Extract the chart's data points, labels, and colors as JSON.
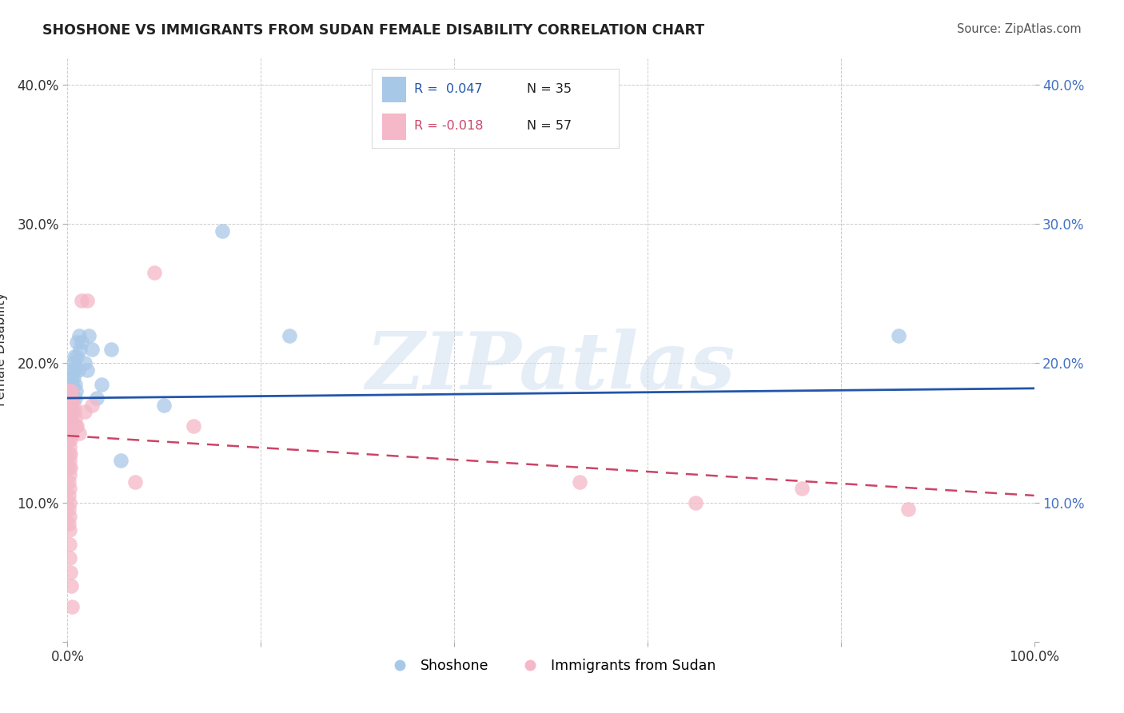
{
  "title": "SHOSHONE VS IMMIGRANTS FROM SUDAN FEMALE DISABILITY CORRELATION CHART",
  "source": "Source: ZipAtlas.com",
  "ylabel": "Female Disability",
  "watermark": "ZIPatlas",
  "xlim": [
    0,
    1.0
  ],
  "ylim": [
    0,
    0.42
  ],
  "ytick_color": "#4472c4",
  "blue_color": "#a8c8e8",
  "pink_color": "#f4b8c8",
  "blue_line_color": "#2255aa",
  "pink_line_color": "#cc4466",
  "grid_color": "#cccccc",
  "background_color": "#ffffff",
  "shoshone_x": [
    0.003,
    0.003,
    0.003,
    0.004,
    0.004,
    0.004,
    0.004,
    0.005,
    0.005,
    0.005,
    0.006,
    0.006,
    0.007,
    0.007,
    0.008,
    0.008,
    0.009,
    0.01,
    0.01,
    0.011,
    0.012,
    0.013,
    0.015,
    0.018,
    0.02,
    0.022,
    0.025,
    0.03,
    0.035,
    0.045,
    0.055,
    0.1,
    0.16,
    0.23,
    0.86
  ],
  "shoshone_y": [
    0.185,
    0.175,
    0.165,
    0.19,
    0.18,
    0.17,
    0.16,
    0.195,
    0.185,
    0.175,
    0.2,
    0.19,
    0.205,
    0.195,
    0.185,
    0.175,
    0.18,
    0.215,
    0.205,
    0.195,
    0.22,
    0.21,
    0.215,
    0.2,
    0.195,
    0.22,
    0.21,
    0.175,
    0.185,
    0.21,
    0.13,
    0.17,
    0.295,
    0.22,
    0.22
  ],
  "sudan_x": [
    0.001,
    0.001,
    0.001,
    0.001,
    0.001,
    0.001,
    0.001,
    0.001,
    0.001,
    0.001,
    0.002,
    0.002,
    0.002,
    0.002,
    0.002,
    0.002,
    0.002,
    0.002,
    0.002,
    0.002,
    0.002,
    0.002,
    0.002,
    0.003,
    0.003,
    0.003,
    0.003,
    0.003,
    0.003,
    0.003,
    0.004,
    0.004,
    0.004,
    0.004,
    0.004,
    0.005,
    0.005,
    0.005,
    0.005,
    0.006,
    0.006,
    0.007,
    0.008,
    0.009,
    0.01,
    0.012,
    0.015,
    0.018,
    0.02,
    0.025,
    0.07,
    0.09,
    0.13,
    0.53,
    0.65,
    0.76,
    0.87
  ],
  "sudan_y": [
    0.175,
    0.165,
    0.155,
    0.145,
    0.135,
    0.125,
    0.115,
    0.105,
    0.095,
    0.085,
    0.18,
    0.17,
    0.16,
    0.15,
    0.14,
    0.13,
    0.12,
    0.11,
    0.1,
    0.09,
    0.08,
    0.07,
    0.06,
    0.175,
    0.165,
    0.155,
    0.145,
    0.135,
    0.125,
    0.05,
    0.18,
    0.17,
    0.16,
    0.15,
    0.04,
    0.175,
    0.165,
    0.155,
    0.025,
    0.17,
    0.155,
    0.165,
    0.16,
    0.155,
    0.155,
    0.15,
    0.245,
    0.165,
    0.245,
    0.17,
    0.115,
    0.265,
    0.155,
    0.115,
    0.1,
    0.11,
    0.095
  ],
  "blue_line_y0": 0.175,
  "blue_line_y1": 0.182,
  "pink_line_y0": 0.148,
  "pink_line_y1": 0.105
}
